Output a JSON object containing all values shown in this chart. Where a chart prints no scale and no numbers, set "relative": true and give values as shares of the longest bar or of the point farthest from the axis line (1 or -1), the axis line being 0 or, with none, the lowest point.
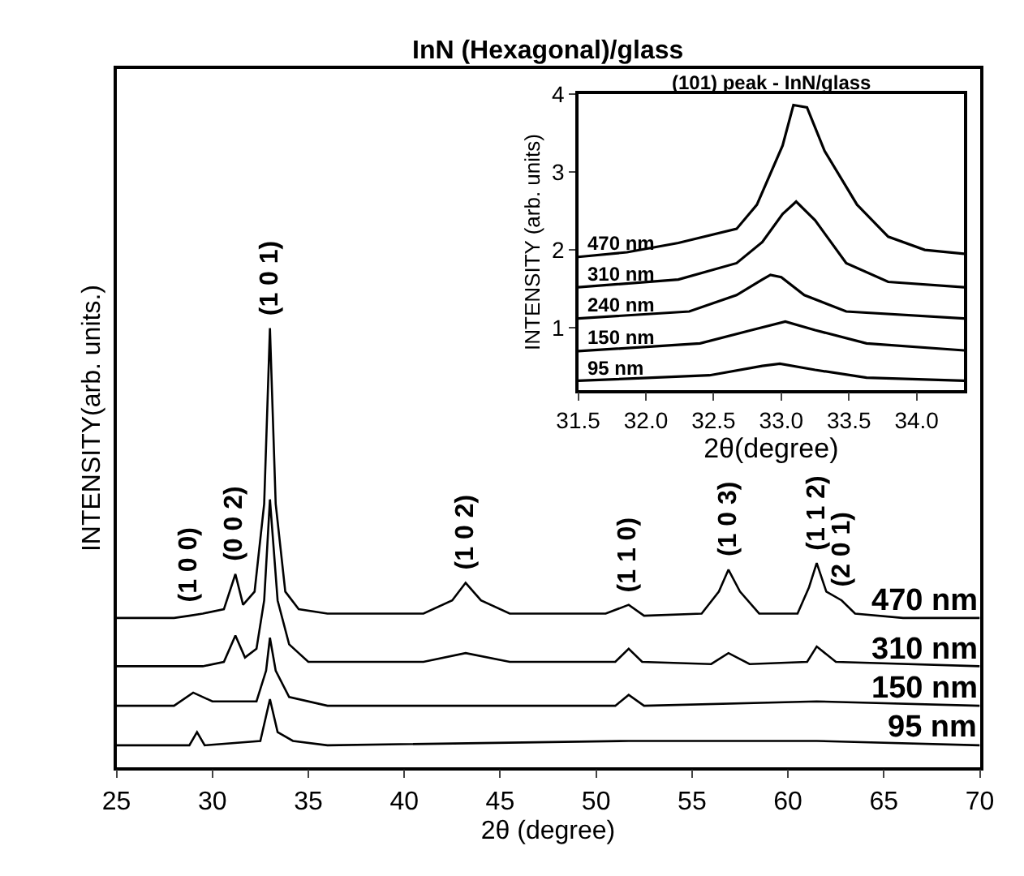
{
  "chart_data": [
    {
      "type": "line",
      "title": "InN (Hexagonal)/glass",
      "xlabel": "2θ (degree)",
      "ylabel": "INTENSITY(arb. units.)",
      "relative": true,
      "legend": false,
      "xlim": [
        25,
        70
      ],
      "xticks": [
        25,
        30,
        35,
        40,
        45,
        50,
        55,
        60,
        65,
        70
      ],
      "series": [
        {
          "name": "470 nm",
          "color": "#000000",
          "x": [
            25,
            28,
            28.8,
            29.5,
            30.6,
            31.2,
            31.6,
            32.2,
            32.7,
            33.0,
            33.3,
            33.8,
            34.5,
            36,
            41,
            42.5,
            43.2,
            44,
            45.5,
            50.5,
            51.7,
            52.5,
            55.5,
            56.4,
            56.9,
            57.5,
            58.5,
            60.5,
            61.1,
            61.5,
            62,
            62.8,
            63.5,
            66,
            70
          ],
          "values": [
            0.34,
            0.34,
            0.345,
            0.35,
            0.36,
            0.44,
            0.37,
            0.4,
            0.6,
            1.0,
            0.6,
            0.4,
            0.36,
            0.35,
            0.35,
            0.38,
            0.42,
            0.38,
            0.35,
            0.35,
            0.37,
            0.345,
            0.35,
            0.4,
            0.45,
            0.4,
            0.35,
            0.35,
            0.41,
            0.465,
            0.4,
            0.38,
            0.35,
            0.34,
            0.34
          ]
        },
        {
          "name": "310 nm",
          "color": "#000000",
          "x": [
            25,
            29.5,
            30.6,
            31.2,
            31.7,
            32.3,
            32.7,
            33.0,
            33.4,
            34,
            35,
            41,
            43.2,
            45.5,
            51,
            51.7,
            52.4,
            56,
            56.9,
            58,
            61,
            61.5,
            62.5,
            70
          ],
          "values": [
            0.23,
            0.23,
            0.24,
            0.3,
            0.25,
            0.27,
            0.38,
            0.61,
            0.38,
            0.28,
            0.24,
            0.24,
            0.26,
            0.24,
            0.24,
            0.27,
            0.24,
            0.235,
            0.26,
            0.235,
            0.24,
            0.275,
            0.24,
            0.23
          ]
        },
        {
          "name": "150 nm",
          "color": "#000000",
          "x": [
            25,
            28,
            29,
            30,
            32.3,
            32.8,
            33.0,
            33.3,
            34,
            36,
            51,
            51.7,
            52.5,
            61.5,
            70
          ],
          "values": [
            0.14,
            0.14,
            0.17,
            0.15,
            0.15,
            0.22,
            0.295,
            0.22,
            0.16,
            0.14,
            0.14,
            0.165,
            0.14,
            0.15,
            0.14
          ]
        },
        {
          "name": "95 nm",
          "color": "#000000",
          "x": [
            25,
            28.8,
            29.2,
            29.6,
            32.5,
            33.0,
            33.4,
            34.2,
            36,
            51.7,
            61.5,
            70
          ],
          "values": [
            0.05,
            0.05,
            0.08,
            0.05,
            0.06,
            0.155,
            0.08,
            0.06,
            0.05,
            0.06,
            0.06,
            0.05
          ]
        }
      ],
      "annotations": [
        {
          "text": "(1 0 0)",
          "x": 28.8,
          "y": 0.345
        },
        {
          "text": "(0 0 2)",
          "x": 31.2,
          "y": 0.44
        },
        {
          "text": "(1 0 1)",
          "x": 33.0,
          "y": 1.0
        },
        {
          "text": "(1 0 2)",
          "x": 43.2,
          "y": 0.42
        },
        {
          "text": "(1 1 0)",
          "x": 51.7,
          "y": 0.37
        },
        {
          "text": "(1 0 3)",
          "x": 56.9,
          "y": 0.45
        },
        {
          "text": "(1 1 2)",
          "x": 61.5,
          "y": 0.465
        },
        {
          "text": "(2 0 1)",
          "x": 62.8,
          "y": 0.38
        }
      ]
    },
    {
      "type": "line",
      "title": "(101) peak - InN/glass",
      "xlabel": "2θ(degree)",
      "ylabel": "INTENSITY (arb. units)",
      "legend": false,
      "xlim": [
        31.5,
        34.35
      ],
      "xticks": [
        31.5,
        {
          "value": 32,
          "label": "32.0"
        },
        32.5,
        {
          "value": 33,
          "label": "33.0"
        },
        33.5,
        {
          "value": 34,
          "label": "34.0"
        }
      ],
      "ylim": [
        0.2,
        4
      ],
      "yticks": [
        1,
        2,
        3,
        4
      ],
      "series": [
        {
          "name": "470 nm",
          "color": "#000000",
          "x": [
            31.5,
            31.86,
            32.24,
            32.67,
            32.82,
            33.01,
            33.09,
            33.19,
            33.32,
            33.56,
            33.79,
            34.06,
            34.35
          ],
          "values": [
            1.91,
            1.97,
            2.09,
            2.27,
            2.58,
            3.34,
            3.86,
            3.83,
            3.27,
            2.58,
            2.17,
            2.0,
            1.95
          ]
        },
        {
          "name": "310 nm",
          "color": "#000000",
          "x": [
            31.5,
            32.24,
            32.67,
            32.86,
            33.01,
            33.11,
            33.25,
            33.48,
            33.79,
            34.35
          ],
          "values": [
            1.52,
            1.62,
            1.83,
            2.1,
            2.46,
            2.62,
            2.38,
            1.83,
            1.59,
            1.52
          ]
        },
        {
          "name": "240 nm",
          "color": "#000000",
          "x": [
            31.5,
            32.32,
            32.67,
            32.86,
            32.92,
            33.0,
            33.17,
            33.48,
            34.35
          ],
          "values": [
            1.12,
            1.21,
            1.42,
            1.62,
            1.68,
            1.65,
            1.42,
            1.21,
            1.12
          ]
        },
        {
          "name": "150 nm",
          "color": "#000000",
          "x": [
            31.5,
            32.4,
            32.78,
            33.03,
            33.25,
            33.63,
            34.35
          ],
          "values": [
            0.7,
            0.8,
            0.97,
            1.08,
            0.97,
            0.8,
            0.71
          ]
        },
        {
          "name": "95 nm",
          "color": "#000000",
          "x": [
            31.5,
            32.47,
            32.86,
            32.99,
            33.25,
            33.63,
            34.35
          ],
          "values": [
            0.32,
            0.39,
            0.51,
            0.54,
            0.46,
            0.36,
            0.32
          ]
        }
      ]
    }
  ]
}
